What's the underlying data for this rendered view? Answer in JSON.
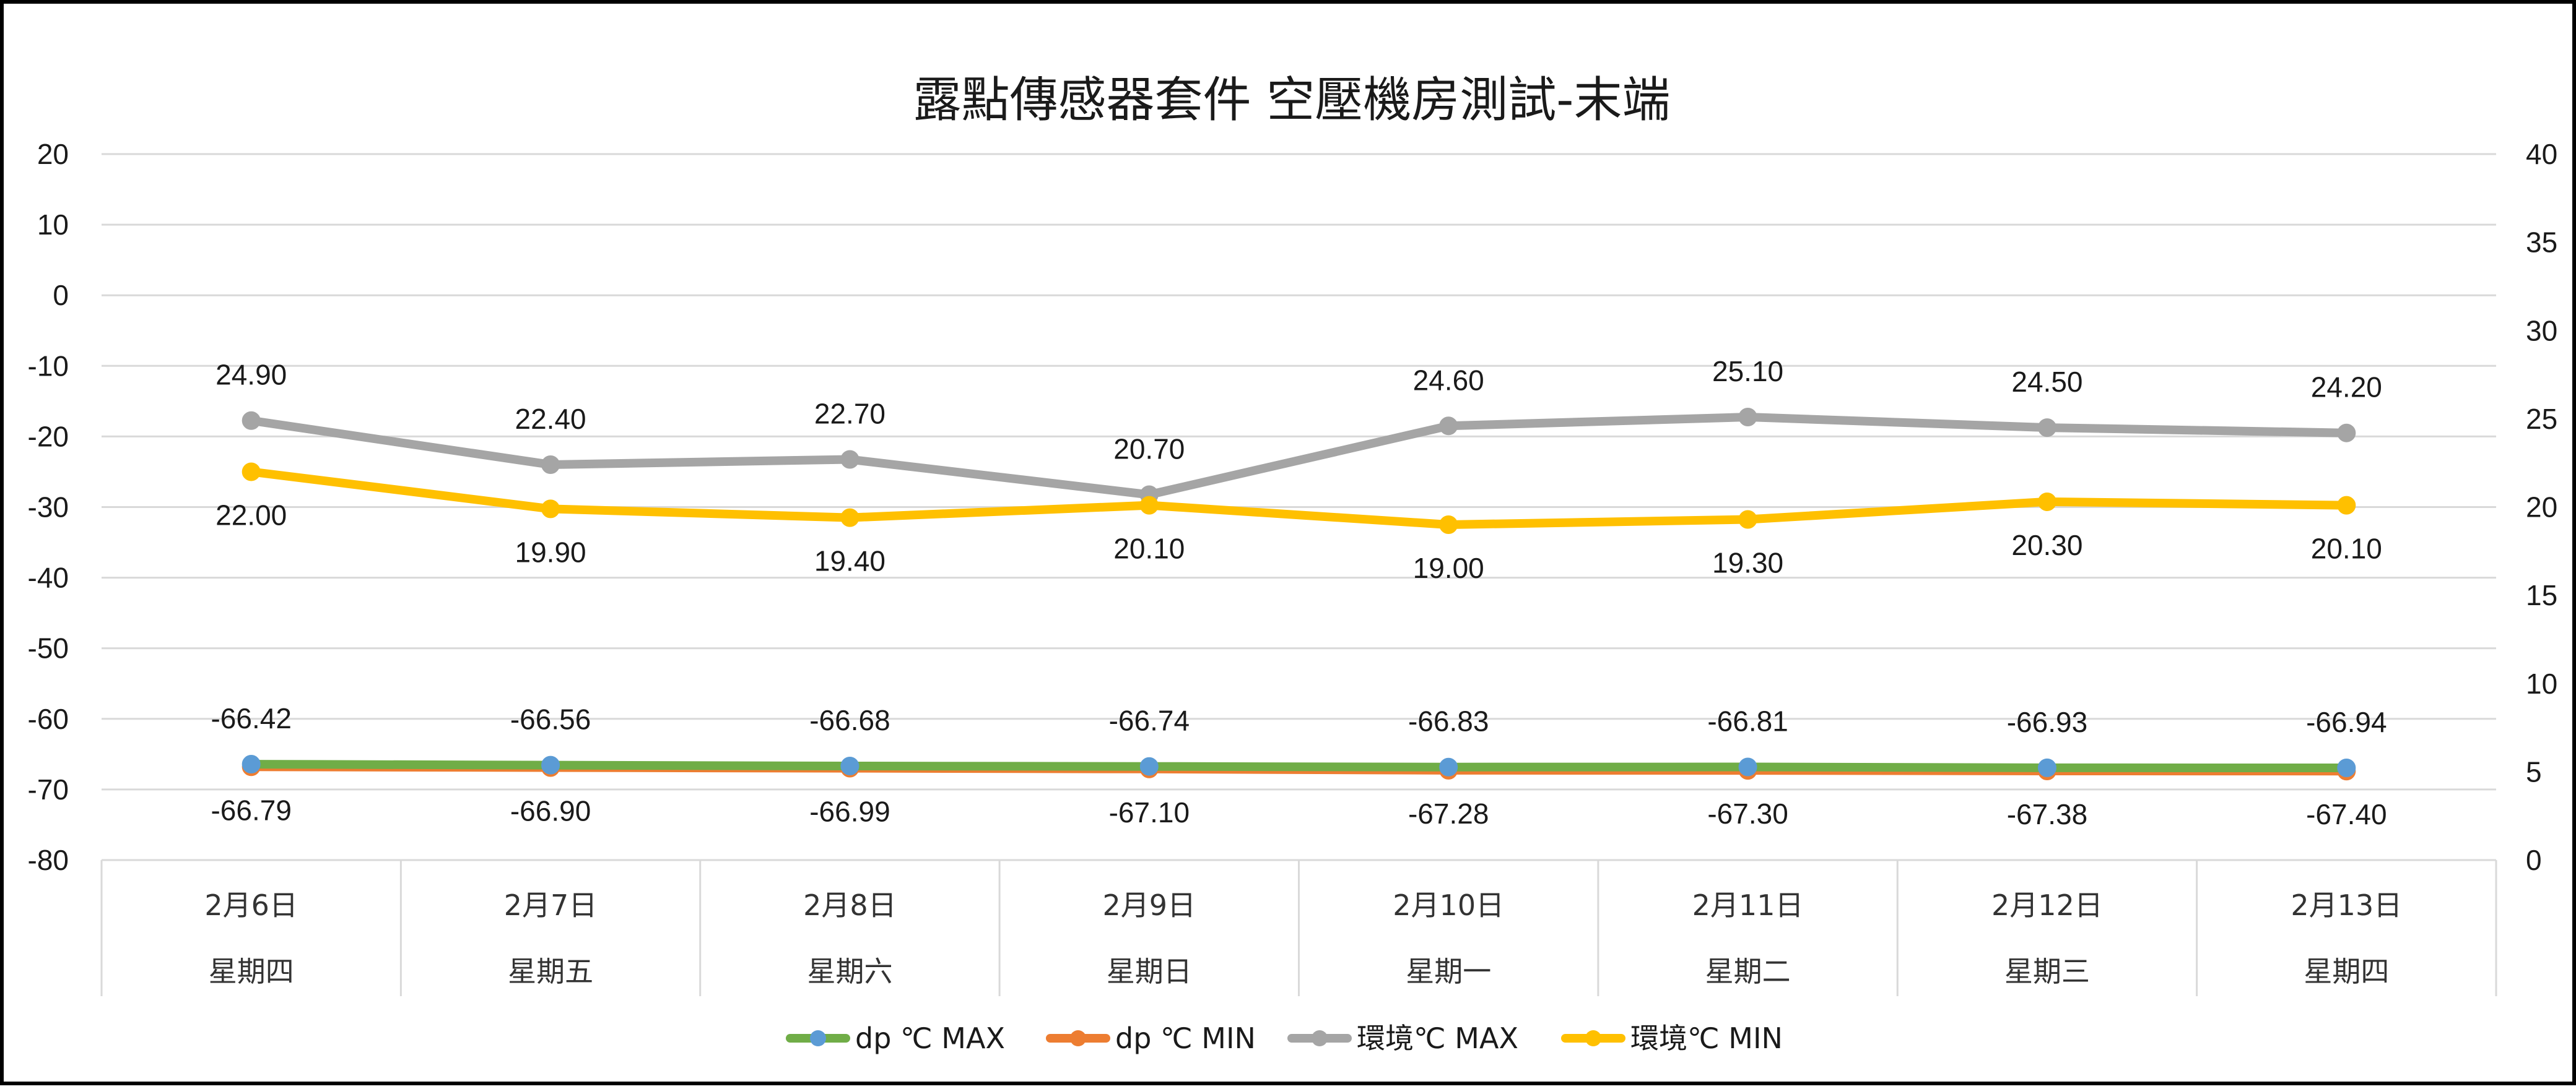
{
  "chart_data": {
    "type": "line",
    "title": "露點傳感器套件  空壓機房測試-末端",
    "categories": [
      {
        "date": "2月6日",
        "weekday": "星期四"
      },
      {
        "date": "2月7日",
        "weekday": "星期五"
      },
      {
        "date": "2月8日",
        "weekday": "星期六"
      },
      {
        "date": "2月9日",
        "weekday": "星期日"
      },
      {
        "date": "2月10日",
        "weekday": "星期一"
      },
      {
        "date": "2月11日",
        "weekday": "星期二"
      },
      {
        "date": "2月12日",
        "weekday": "星期三"
      },
      {
        "date": "2月13日",
        "weekday": "星期四"
      }
    ],
    "y_left": {
      "min": -80,
      "max": 20,
      "step": 10
    },
    "y_right": {
      "min": 0,
      "max": 40,
      "step": 5
    },
    "grid": true,
    "legend_position": "bottom",
    "series": [
      {
        "name": "dp ℃ MAX",
        "axis": "left",
        "color": "#70ad47",
        "marker_color": "#5b9bd5",
        "label_position": "above",
        "values": [
          -66.42,
          -66.56,
          -66.68,
          -66.74,
          -66.83,
          -66.81,
          -66.93,
          -66.94
        ],
        "labels": [
          "-66.42",
          "-66.56",
          "-66.68",
          "-66.74",
          "-66.83",
          "-66.81",
          "-66.93",
          "-66.94"
        ]
      },
      {
        "name": "dp ℃ MIN",
        "axis": "left",
        "color": "#ed7d31",
        "marker_color": "#ed7d31",
        "label_position": "below",
        "values": [
          -66.79,
          -66.9,
          -66.99,
          -67.1,
          -67.28,
          -67.3,
          -67.38,
          -67.4
        ],
        "labels": [
          "-66.79",
          "-66.90",
          "-66.99",
          "-67.10",
          "-67.28",
          "-67.30",
          "-67.38",
          "-67.40"
        ]
      },
      {
        "name": "環境℃ MAX",
        "axis": "right",
        "color": "#a5a5a5",
        "marker_color": "#a5a5a5",
        "label_position": "above",
        "values": [
          24.9,
          22.4,
          22.7,
          20.7,
          24.6,
          25.1,
          24.5,
          24.2
        ],
        "labels": [
          "24.90",
          "22.40",
          "22.70",
          "20.70",
          "24.60",
          "25.10",
          "24.50",
          "24.20"
        ]
      },
      {
        "name": "環境℃ MIN",
        "axis": "right",
        "color": "#ffc000",
        "marker_color": "#ffc000",
        "label_position": "below",
        "values": [
          22.0,
          19.9,
          19.4,
          20.1,
          19.0,
          19.3,
          20.3,
          20.1
        ],
        "labels": [
          "22.00",
          "19.90",
          "19.40",
          "20.10",
          "19.00",
          "19.30",
          "20.30",
          "20.10"
        ]
      }
    ]
  }
}
